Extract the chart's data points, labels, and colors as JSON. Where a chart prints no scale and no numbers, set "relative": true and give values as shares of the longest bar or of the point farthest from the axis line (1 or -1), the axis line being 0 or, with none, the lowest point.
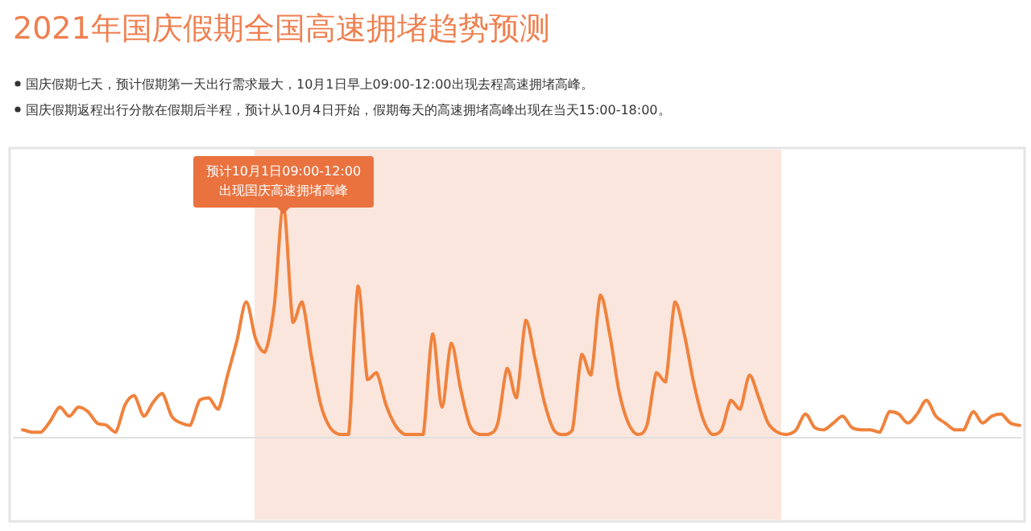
{
  "chart_data": {
    "type": "line",
    "title": "2021年国庆假期全国高速拥堵趋势预测",
    "annotations": [
      "国庆假期七天，预计假期第一天出行需求最大，10月1日早上09:00-12:00出现去程高速拥堵高峰。",
      "国庆假期返程出行分散在假期后半程，预计从10月4日开始，假期每天的高速拥堵高峰出现在当天15:00-18:00。",
      {
        "text": "预计10月1日09:00-12:00\n出现国庆高速拥堵高峰",
        "y": 1.0
      }
    ],
    "relative": true,
    "categories": [
      null,
      null,
      null,
      null,
      null,
      null,
      null,
      null,
      null,
      null,
      null,
      null,
      null,
      null,
      null,
      null,
      null,
      null,
      null,
      null,
      null,
      null,
      null,
      null,
      null,
      null,
      null,
      null,
      null,
      null,
      null,
      null,
      null,
      null,
      null,
      null,
      null,
      null,
      null,
      null,
      null,
      null,
      null,
      null,
      null,
      null,
      null,
      null,
      null,
      null,
      null,
      null,
      null,
      null,
      null,
      null,
      null,
      null,
      null,
      null,
      null,
      null,
      null,
      null,
      null,
      null,
      null,
      null,
      null,
      null,
      null,
      null,
      null,
      null,
      null,
      null,
      null,
      null,
      null,
      null,
      null,
      null,
      null,
      null,
      null,
      null,
      null,
      null,
      null,
      null,
      null,
      null,
      null,
      null,
      null,
      null,
      null,
      null,
      null,
      null,
      null,
      null,
      null,
      null,
      null,
      null,
      null,
      null
    ],
    "values": [
      0.02,
      0.01,
      0.01,
      0.06,
      0.12,
      0.08,
      0.12,
      0.1,
      0.05,
      0.04,
      0.01,
      0.13,
      0.17,
      0.08,
      0.14,
      0.18,
      0.08,
      0.05,
      0.04,
      0.15,
      0.16,
      0.11,
      0.26,
      0.41,
      0.58,
      0.42,
      0.36,
      0.56,
      1.0,
      0.49,
      0.58,
      0.34,
      0.13,
      0.03,
      0,
      0,
      0.65,
      0.24,
      0.27,
      0.13,
      0.04,
      0,
      0,
      0,
      0.44,
      0.12,
      0.4,
      0.2,
      0.04,
      0,
      0,
      0.05,
      0.29,
      0.16,
      0.5,
      0.33,
      0.14,
      0.02,
      0,
      0.02,
      0.35,
      0.26,
      0.61,
      0.44,
      0.19,
      0.05,
      0,
      0.04,
      0.27,
      0.23,
      0.58,
      0.44,
      0.23,
      0.07,
      0,
      0.02,
      0.15,
      0.11,
      0.26,
      0.16,
      0.05,
      0.01,
      0,
      0.02,
      0.09,
      0.03,
      0.02,
      0.05,
      0.08,
      0.03,
      0.02,
      0.02,
      0.01,
      0.1,
      0.09,
      0.05,
      0.09,
      0.15,
      0.08,
      0.05,
      0.02,
      0.02,
      0.1,
      0.05,
      0.08,
      0.09,
      0.05,
      0.04
    ],
    "color": "#f0823c"
  }
}
